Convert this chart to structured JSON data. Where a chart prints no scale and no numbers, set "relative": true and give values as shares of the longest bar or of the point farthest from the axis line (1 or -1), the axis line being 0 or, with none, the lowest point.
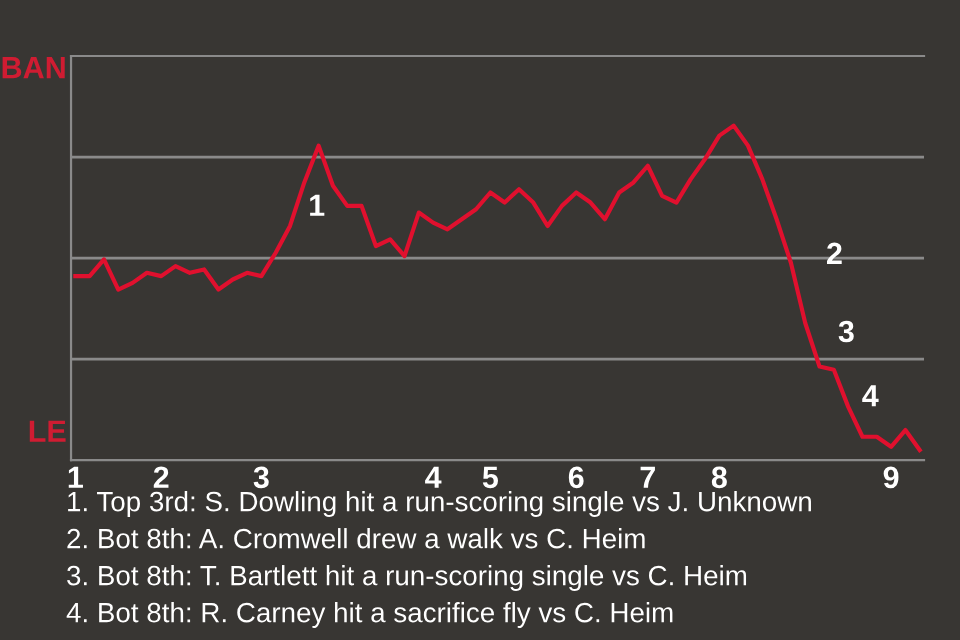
{
  "chart_data": {
    "type": "line",
    "relative": true,
    "categories": [
      "1",
      null,
      null,
      null,
      null,
      null,
      "2",
      null,
      null,
      null,
      null,
      null,
      null,
      "3",
      null,
      null,
      null,
      null,
      null,
      null,
      null,
      null,
      null,
      null,
      null,
      "4",
      null,
      null,
      null,
      "5",
      null,
      null,
      null,
      null,
      null,
      "6",
      null,
      null,
      null,
      null,
      "7",
      null,
      null,
      null,
      null,
      "8",
      null,
      null,
      null,
      null,
      null,
      null,
      null,
      null,
      null,
      null,
      null,
      "9",
      null,
      null
    ],
    "series": [
      {
        "color": "#e0102e",
        "values": [
          0.55,
          0.55,
          0.6,
          0.51,
          0.53,
          0.56,
          0.55,
          0.58,
          0.56,
          0.57,
          0.51,
          0.54,
          0.56,
          0.55,
          0.62,
          0.7,
          0.83,
          0.94,
          0.82,
          0.76,
          0.76,
          0.64,
          0.66,
          0.61,
          0.74,
          0.71,
          0.69,
          0.72,
          0.75,
          0.8,
          0.77,
          0.81,
          0.77,
          0.7,
          0.76,
          0.8,
          0.77,
          0.72,
          0.8,
          0.83,
          0.88,
          0.79,
          0.77,
          0.84,
          0.9,
          0.97,
          1,
          0.94,
          0.84,
          0.72,
          0.59,
          0.41,
          0.28,
          0.27,
          0.16,
          0.07,
          0.07,
          0.04,
          0.09,
          0.03
        ],
        "name": null
      }
    ],
    "grid": "y",
    "annotations": [
      "BAN",
      "LE",
      "1",
      "2",
      "3",
      "4",
      "1. Top 3rd: S. Dowling hit a run-scoring single vs J. Unknown",
      "2. Bot 8th: A. Cromwell drew a walk vs C. Heim",
      "3. Bot 8th: T. Bartlett hit a run-scoring single vs C. Heim",
      "4. Bot 8th: R. Carney hit a sacrifice fly vs C. Heim"
    ],
    "marker": "none",
    "line_style": "solid"
  }
}
